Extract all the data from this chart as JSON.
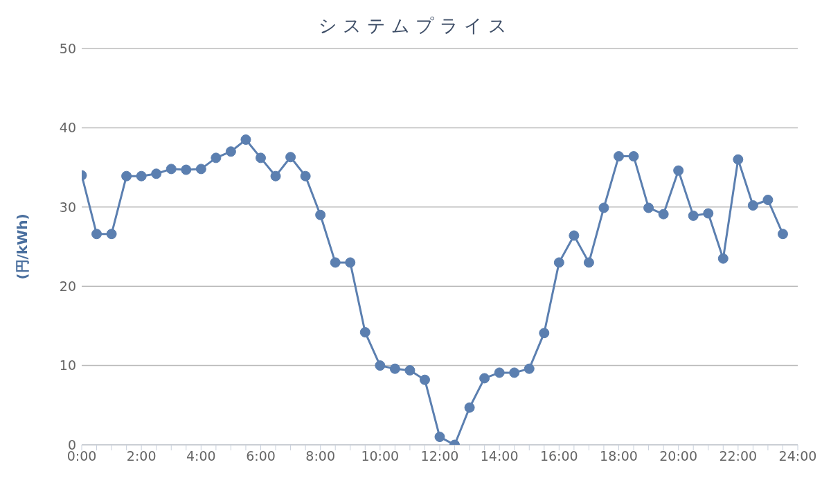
{
  "chart_data": {
    "type": "line",
    "title": "システムプライス",
    "ylabel": "(円/kWh)",
    "x": [
      0,
      0.5,
      1,
      1.5,
      2,
      2.5,
      3,
      3.5,
      4,
      4.5,
      5,
      5.5,
      6,
      6.5,
      7,
      7.5,
      8,
      8.5,
      9,
      9.5,
      10,
      10.5,
      11,
      11.5,
      12,
      12.5,
      13,
      13.5,
      14,
      14.5,
      15,
      15.5,
      16,
      16.5,
      17,
      17.5,
      18,
      18.5,
      19,
      19.5,
      20,
      20.5,
      21,
      21.5,
      22,
      22.5,
      23,
      23.5
    ],
    "series": [
      {
        "color": "#5b7fb0",
        "values": [
          34.0,
          26.6,
          26.6,
          33.9,
          33.9,
          34.2,
          34.8,
          34.7,
          34.8,
          36.2,
          37.0,
          38.5,
          36.2,
          33.9,
          36.3,
          33.9,
          29.0,
          23.0,
          23.0,
          14.2,
          10.0,
          9.6,
          9.4,
          8.2,
          1.0,
          0.0,
          4.7,
          8.4,
          9.1,
          9.1,
          9.6,
          14.1,
          23.0,
          26.4,
          23.0,
          29.9,
          36.4,
          36.4,
          29.9,
          29.1,
          34.6,
          28.9,
          29.2,
          23.5,
          36.0,
          30.2,
          30.9,
          26.6
        ]
      }
    ],
    "xlim": [
      0,
      24
    ],
    "xticks": [
      {
        "value": 0,
        "label": "0:00"
      },
      {
        "value": 0.5,
        "label": null
      },
      {
        "value": 1,
        "label": null
      },
      {
        "value": 1.5,
        "label": null
      },
      {
        "value": 2,
        "label": "2:00"
      },
      {
        "value": 2.5,
        "label": null
      },
      {
        "value": 3,
        "label": null
      },
      {
        "value": 3.5,
        "label": null
      },
      {
        "value": 4,
        "label": "4:00"
      },
      {
        "value": 4.5,
        "label": null
      },
      {
        "value": 5,
        "label": null
      },
      {
        "value": 5.5,
        "label": null
      },
      {
        "value": 6,
        "label": "6:00"
      },
      {
        "value": 6.5,
        "label": null
      },
      {
        "value": 7,
        "label": null
      },
      {
        "value": 7.5,
        "label": null
      },
      {
        "value": 8,
        "label": "8:00"
      },
      {
        "value": 8.5,
        "label": null
      },
      {
        "value": 9,
        "label": null
      },
      {
        "value": 9.5,
        "label": null
      },
      {
        "value": 10,
        "label": "10:00"
      },
      {
        "value": 10.5,
        "label": null
      },
      {
        "value": 11,
        "label": null
      },
      {
        "value": 11.5,
        "label": null
      },
      {
        "value": 12,
        "label": "12:00"
      },
      {
        "value": 12.5,
        "label": null
      },
      {
        "value": 13,
        "label": null
      },
      {
        "value": 13.5,
        "label": null
      },
      {
        "value": 14,
        "label": "14:00"
      },
      {
        "value": 14.5,
        "label": null
      },
      {
        "value": 15,
        "label": null
      },
      {
        "value": 15.5,
        "label": null
      },
      {
        "value": 16,
        "label": "16:00"
      },
      {
        "value": 16.5,
        "label": null
      },
      {
        "value": 17,
        "label": null
      },
      {
        "value": 17.5,
        "label": null
      },
      {
        "value": 18,
        "label": "18:00"
      },
      {
        "value": 18.5,
        "label": null
      },
      {
        "value": 19,
        "label": null
      },
      {
        "value": 19.5,
        "label": null
      },
      {
        "value": 20,
        "label": "20:00"
      },
      {
        "value": 20.5,
        "label": null
      },
      {
        "value": 21,
        "label": null
      },
      {
        "value": 21.5,
        "label": null
      },
      {
        "value": 22,
        "label": "22:00"
      },
      {
        "value": 22.5,
        "label": null
      },
      {
        "value": 23,
        "label": null
      },
      {
        "value": 23.5,
        "label": null
      },
      {
        "value": 24,
        "label": "24:00"
      }
    ],
    "ylim": [
      0,
      50
    ],
    "yticks": [
      0,
      10,
      20,
      30,
      40,
      50
    ],
    "grid": "y",
    "legend": false,
    "marker": "circle",
    "line_style": "solid"
  }
}
